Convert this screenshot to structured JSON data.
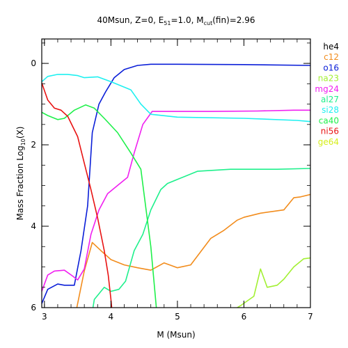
{
  "chart_data": {
    "type": "line",
    "title": {
      "prefix": "40Msun, Z=0, E",
      "sub1": "51",
      "middle": "=1.0, M",
      "sub2": "cut",
      "suffix": "(fin)=2.96"
    },
    "xlabel": "M (Msun)",
    "ylabel": {
      "prefix": "Mass Fraction Log",
      "sub": "10",
      "suffix": "(X)"
    },
    "xlim": [
      2.96,
      7.0
    ],
    "ylim": [
      -6.0,
      0.6
    ],
    "x_ticks": [
      3,
      4,
      5,
      6,
      7
    ],
    "x_tick_labels": [
      "3",
      "4",
      "5",
      "6",
      "7"
    ],
    "y_ticks": [
      0,
      -2,
      -4,
      -6
    ],
    "y_tick_labels": [
      "0",
      "2",
      "4",
      "6"
    ],
    "x_minor_step": 0.2,
    "y_minor_step": 0.5,
    "grid": false,
    "legend_position": "right-outside",
    "series": [
      {
        "name": "he4",
        "color": "#000000",
        "points": []
      },
      {
        "name": "c12",
        "color": "#f28c1c",
        "points": [
          [
            3.45,
            -6.3
          ],
          [
            3.6,
            -5.1
          ],
          [
            3.72,
            -4.4
          ],
          [
            3.85,
            -4.6
          ],
          [
            4.0,
            -4.82
          ],
          [
            4.2,
            -4.95
          ],
          [
            4.4,
            -5.02
          ],
          [
            4.6,
            -5.08
          ],
          [
            4.8,
            -4.9
          ],
          [
            5.0,
            -5.02
          ],
          [
            5.2,
            -4.95
          ],
          [
            5.5,
            -4.3
          ],
          [
            5.7,
            -4.1
          ],
          [
            5.9,
            -3.85
          ],
          [
            6.0,
            -3.78
          ],
          [
            6.25,
            -3.68
          ],
          [
            6.6,
            -3.6
          ],
          [
            6.75,
            -3.3
          ],
          [
            6.85,
            -3.28
          ],
          [
            7.0,
            -3.22
          ]
        ]
      },
      {
        "name": "o16",
        "color": "#0a1ed8",
        "points": [
          [
            2.96,
            -5.9
          ],
          [
            3.05,
            -5.55
          ],
          [
            3.2,
            -5.42
          ],
          [
            3.3,
            -5.45
          ],
          [
            3.45,
            -5.45
          ],
          [
            3.55,
            -4.6
          ],
          [
            3.65,
            -3.5
          ],
          [
            3.72,
            -1.7
          ],
          [
            3.82,
            -1.0
          ],
          [
            3.92,
            -0.7
          ],
          [
            4.05,
            -0.35
          ],
          [
            4.2,
            -0.15
          ],
          [
            4.4,
            -0.05
          ],
          [
            4.6,
            -0.02
          ],
          [
            5.0,
            -0.02
          ],
          [
            6.0,
            -0.03
          ],
          [
            7.0,
            -0.05
          ]
        ]
      },
      {
        "name": "na23",
        "color": "#a2f032",
        "points": [
          [
            5.85,
            -6.05
          ],
          [
            5.95,
            -5.95
          ],
          [
            6.15,
            -5.72
          ],
          [
            6.25,
            -5.05
          ],
          [
            6.35,
            -5.5
          ],
          [
            6.5,
            -5.45
          ],
          [
            6.6,
            -5.3
          ],
          [
            6.75,
            -5.0
          ],
          [
            6.9,
            -4.8
          ],
          [
            7.0,
            -4.78
          ]
        ]
      },
      {
        "name": "mg24",
        "color": "#f01ef0",
        "points": [
          [
            2.96,
            -5.6
          ],
          [
            3.05,
            -5.2
          ],
          [
            3.15,
            -5.1
          ],
          [
            3.3,
            -5.08
          ],
          [
            3.42,
            -5.22
          ],
          [
            3.5,
            -5.32
          ],
          [
            3.6,
            -5.05
          ],
          [
            3.7,
            -4.2
          ],
          [
            3.82,
            -3.6
          ],
          [
            3.95,
            -3.2
          ],
          [
            4.1,
            -3.0
          ],
          [
            4.25,
            -2.8
          ],
          [
            4.35,
            -2.2
          ],
          [
            4.48,
            -1.5
          ],
          [
            4.62,
            -1.18
          ],
          [
            4.85,
            -1.18
          ],
          [
            5.5,
            -1.18
          ],
          [
            6.2,
            -1.17
          ],
          [
            6.75,
            -1.15
          ],
          [
            7.0,
            -1.15
          ]
        ]
      },
      {
        "name": "al27",
        "color": "#1ef08c",
        "points": [
          [
            3.7,
            -6.3
          ],
          [
            3.75,
            -5.8
          ],
          [
            3.9,
            -5.5
          ],
          [
            4.0,
            -5.6
          ],
          [
            4.12,
            -5.55
          ],
          [
            4.22,
            -5.35
          ],
          [
            4.35,
            -4.6
          ],
          [
            4.48,
            -4.2
          ],
          [
            4.6,
            -3.6
          ],
          [
            4.75,
            -3.1
          ],
          [
            4.85,
            -2.95
          ],
          [
            5.0,
            -2.85
          ],
          [
            5.3,
            -2.65
          ],
          [
            5.8,
            -2.6
          ],
          [
            6.5,
            -2.6
          ],
          [
            7.0,
            -2.58
          ]
        ]
      },
      {
        "name": "si28",
        "color": "#1ef0f0",
        "points": [
          [
            2.96,
            -0.45
          ],
          [
            3.05,
            -0.32
          ],
          [
            3.2,
            -0.27
          ],
          [
            3.35,
            -0.27
          ],
          [
            3.5,
            -0.3
          ],
          [
            3.6,
            -0.35
          ],
          [
            3.8,
            -0.33
          ],
          [
            4.0,
            -0.45
          ],
          [
            4.3,
            -0.65
          ],
          [
            4.45,
            -1.0
          ],
          [
            4.6,
            -1.25
          ],
          [
            5.0,
            -1.32
          ],
          [
            6.0,
            -1.35
          ],
          [
            6.8,
            -1.4
          ],
          [
            7.0,
            -1.43
          ]
        ]
      },
      {
        "name": "ca40",
        "color": "#1ef04a",
        "points": [
          [
            2.96,
            -1.2
          ],
          [
            3.05,
            -1.28
          ],
          [
            3.2,
            -1.38
          ],
          [
            3.3,
            -1.35
          ],
          [
            3.45,
            -1.15
          ],
          [
            3.62,
            -1.02
          ],
          [
            3.75,
            -1.1
          ],
          [
            3.9,
            -1.35
          ],
          [
            4.1,
            -1.7
          ],
          [
            4.3,
            -2.2
          ],
          [
            4.45,
            -2.6
          ],
          [
            4.6,
            -4.5
          ],
          [
            4.7,
            -6.3
          ]
        ]
      },
      {
        "name": "ni56",
        "color": "#e81212",
        "points": [
          [
            2.96,
            -0.48
          ],
          [
            3.05,
            -0.9
          ],
          [
            3.15,
            -1.1
          ],
          [
            3.25,
            -1.15
          ],
          [
            3.35,
            -1.3
          ],
          [
            3.5,
            -1.8
          ],
          [
            3.6,
            -2.45
          ],
          [
            3.7,
            -3.1
          ],
          [
            3.8,
            -3.8
          ],
          [
            3.9,
            -4.6
          ],
          [
            3.96,
            -5.2
          ],
          [
            4.0,
            -5.8
          ],
          [
            4.03,
            -6.3
          ]
        ]
      },
      {
        "name": "ge64",
        "color": "#d6ee1a",
        "points": []
      }
    ]
  }
}
